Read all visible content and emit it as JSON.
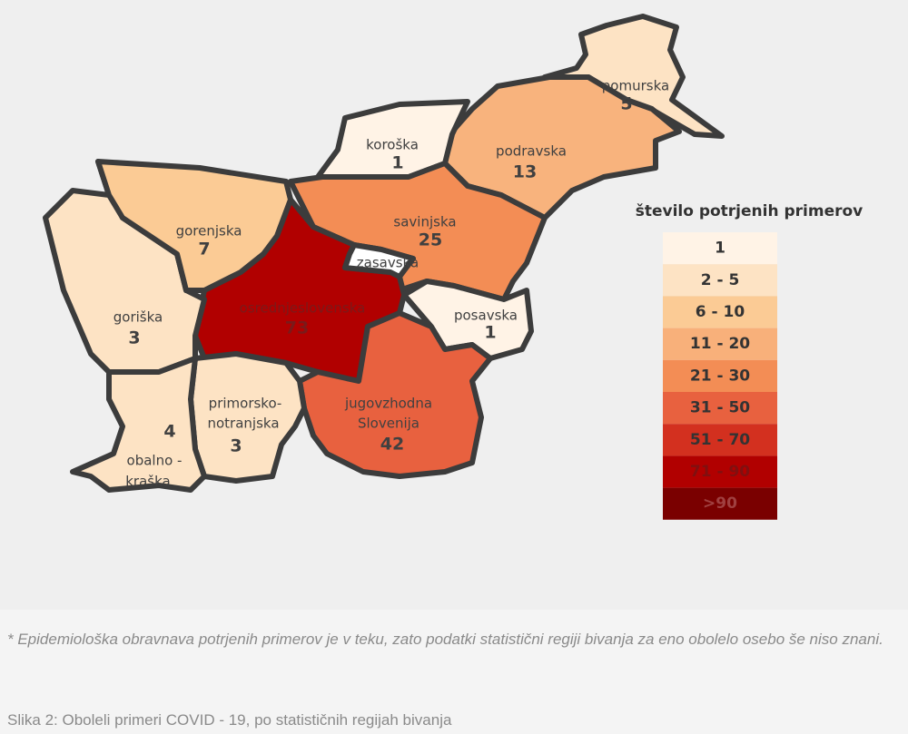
{
  "map": {
    "regions": [
      {
        "name_lines": [
          "pomurska"
        ],
        "value": 5,
        "color": "#fde3c4"
      },
      {
        "name_lines": [
          "koroška"
        ],
        "value": 1,
        "color": "#fff3e6"
      },
      {
        "name_lines": [
          "podravska"
        ],
        "value": 13,
        "color": "#f8b37d"
      },
      {
        "name_lines": [
          "gorenjska"
        ],
        "value": 7,
        "color": "#fbcb95"
      },
      {
        "name_lines": [
          "savinjska"
        ],
        "value": 25,
        "color": "#f38d55"
      },
      {
        "name_lines": [
          "zasavska"
        ],
        "value": null,
        "color": "#ffffff"
      },
      {
        "name_lines": [
          "osrednjeslovenska"
        ],
        "value": 73,
        "color": "#b10000"
      },
      {
        "name_lines": [
          "goriška"
        ],
        "value": 3,
        "color": "#fde3c4"
      },
      {
        "name_lines": [
          "posavska"
        ],
        "value": 1,
        "color": "#fff3e6"
      },
      {
        "name_lines": [
          "jugovzhodna",
          "Slovenija"
        ],
        "value": 42,
        "color": "#e8613f"
      },
      {
        "name_lines": [
          "primorsko-",
          "notranjska"
        ],
        "value": 3,
        "color": "#fde3c4"
      },
      {
        "name_lines": [
          "obalno -",
          "kraška"
        ],
        "value": 4,
        "color": "#fde3c4"
      }
    ],
    "legend": {
      "title": "število potrjenih primerov",
      "bins": [
        {
          "label": "1",
          "color": "#fff3e6"
        },
        {
          "label": "2 - 5",
          "color": "#fde3c4"
        },
        {
          "label": "6 - 10",
          "color": "#fbcb95"
        },
        {
          "label": "11 - 20",
          "color": "#f8b07a"
        },
        {
          "label": "21 - 30",
          "color": "#f38d55"
        },
        {
          "label": "31 - 50",
          "color": "#e8613f"
        },
        {
          "label": "51 - 70",
          "color": "#d3301f"
        },
        {
          "label": "71 - 90",
          "color": "#b10000"
        },
        {
          "label": ">90",
          "color": "#7a0000"
        }
      ]
    }
  },
  "footnote": "* Epidemiološka obravnava potrjenih primerov je v teku, zato podatki statistični regiji bivanja za eno obolelo osebo še niso znani.",
  "caption": "Slika 2: Oboleli primeri COVID - 19, po statističnih regijah bivanja"
}
